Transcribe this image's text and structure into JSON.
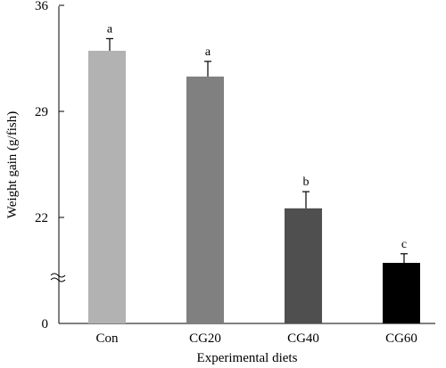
{
  "chart_data": {
    "type": "bar",
    "xlabel": "Experimental diets",
    "ylabel": "Weight gain (g/fish)",
    "categories": [
      "Con",
      "CG20",
      "CG40",
      "CG60"
    ],
    "values": [
      33.0,
      31.3,
      22.6,
      19.0
    ],
    "errors": [
      0.8,
      1.0,
      1.1,
      0.6
    ],
    "significance": [
      "a",
      "a",
      "b",
      "c"
    ],
    "colors": [
      "#b2b2b2",
      "#808080",
      "#4f4f4f",
      "#000000"
    ],
    "yticks": [
      "36",
      "29",
      "22",
      "0"
    ],
    "axis_break": true,
    "ylim": [
      0,
      36
    ],
    "grid": false
  }
}
